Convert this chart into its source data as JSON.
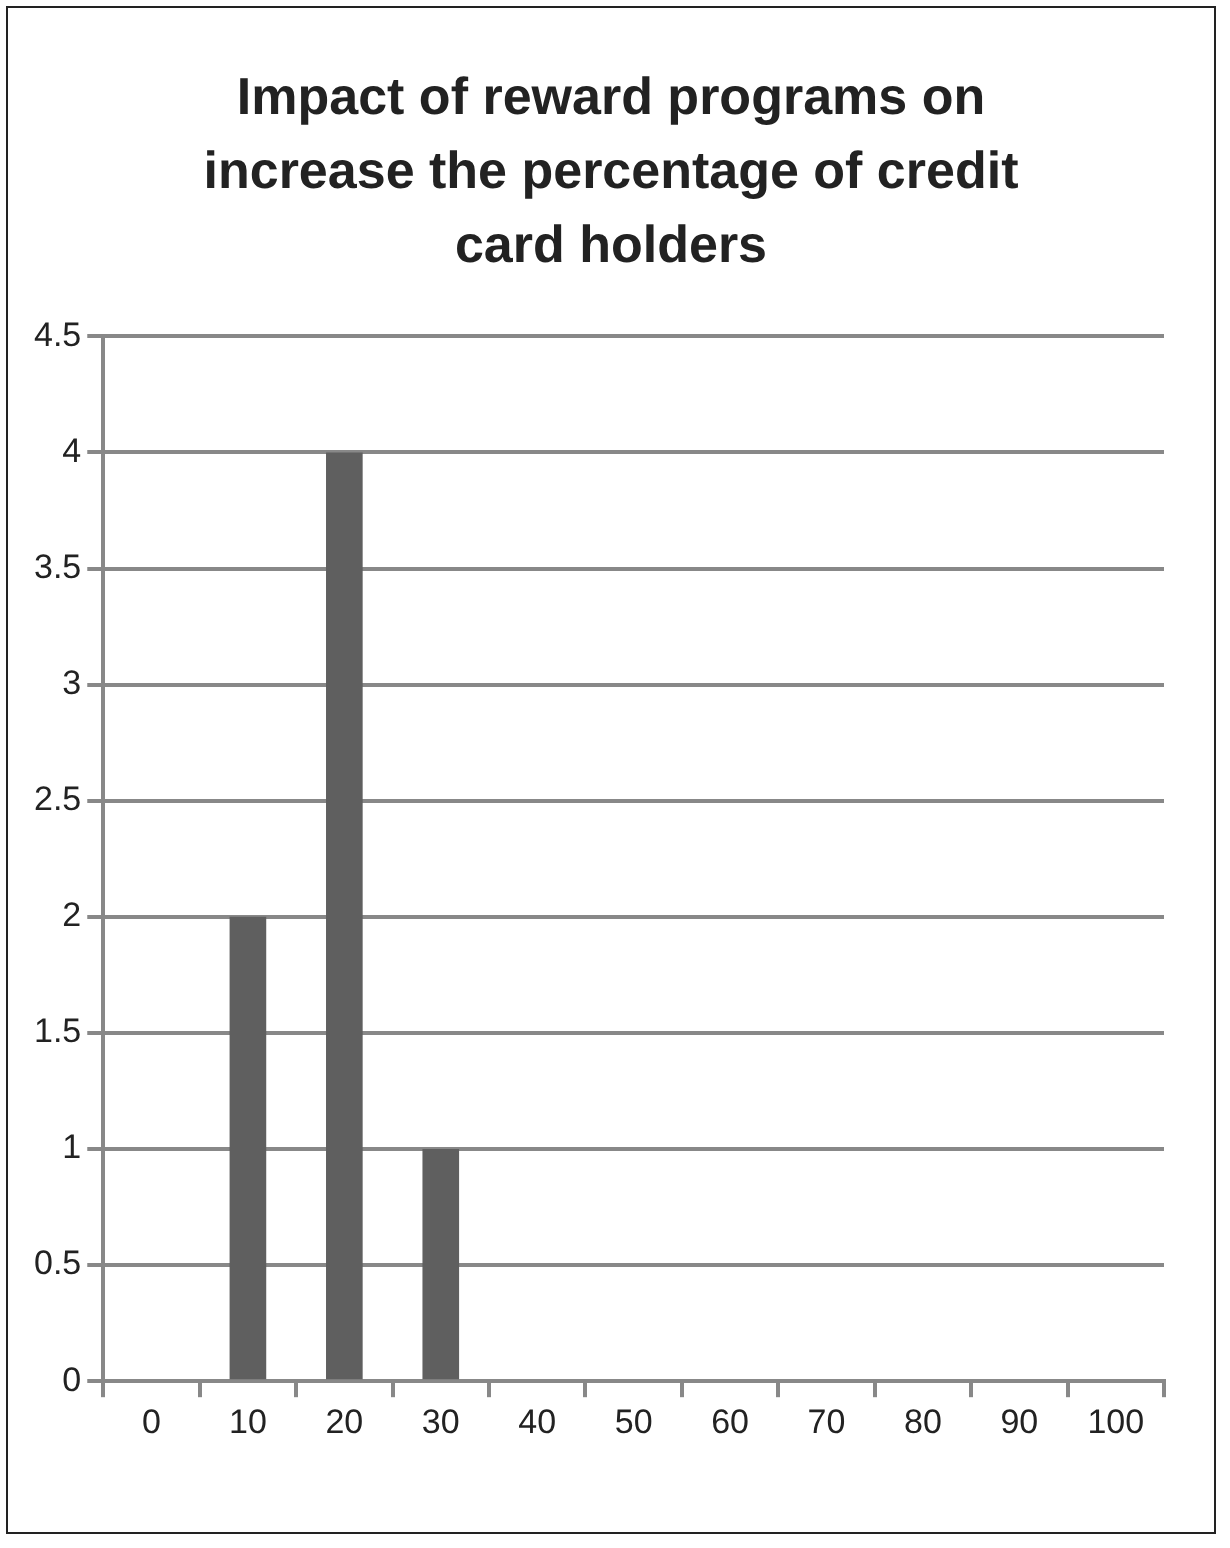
{
  "chart_data": {
    "type": "bar",
    "title": "Impact of reward programs on increase the percentage of credit card holders",
    "categories": [
      "0",
      "10",
      "20",
      "30",
      "40",
      "50",
      "60",
      "70",
      "80",
      "90",
      "100"
    ],
    "values": [
      0,
      2,
      4,
      1,
      0,
      0,
      0,
      0,
      0,
      0,
      0
    ],
    "color": "#5f5f5f",
    "ylim": [
      0,
      4.5
    ],
    "yticks": [
      0,
      0.5,
      1,
      1.5,
      2,
      2.5,
      3,
      3.5,
      4,
      4.5
    ],
    "grid": "y"
  }
}
